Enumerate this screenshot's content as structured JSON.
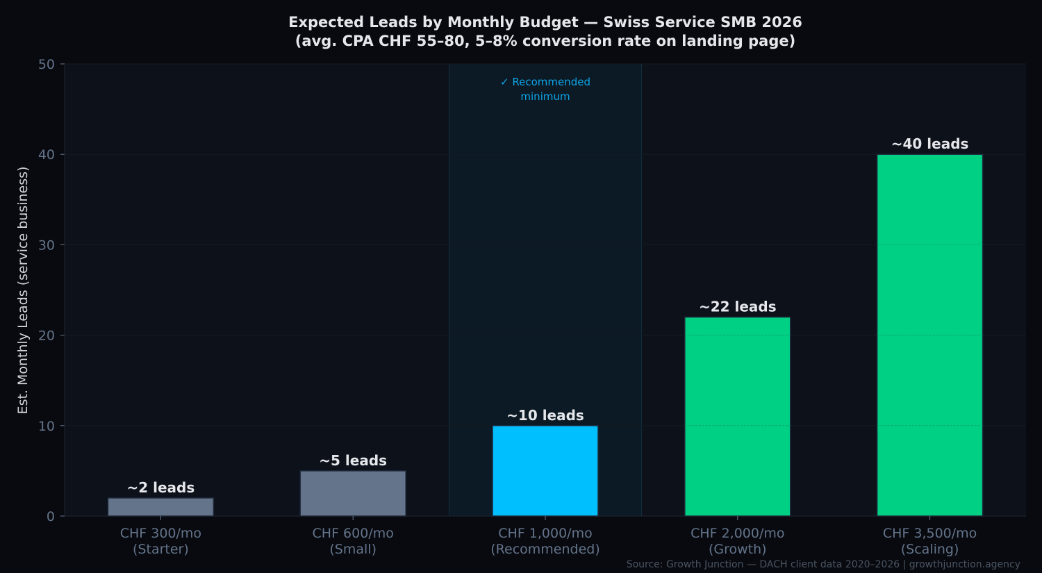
{
  "chart_data": {
    "type": "bar",
    "title": "Expected Leads by Monthly Budget — Swiss Service SMB 2026",
    "subtitle": "(avg. CPA CHF 55–80, 5–8% conversion rate on landing page)",
    "xlabel": "",
    "ylabel": "Est. Monthly Leads (service business)",
    "ylim": [
      0,
      50
    ],
    "yticks": [
      0,
      10,
      20,
      30,
      40,
      50
    ],
    "grid": true,
    "categories": [
      "CHF 300/mo\n(Starter)",
      "CHF 600/mo\n(Small)",
      "CHF 1,000/mo\n(Recommended)",
      "CHF 2,000/mo\n(Growth)",
      "CHF 3,500/mo\n(Scaling)"
    ],
    "values": [
      2,
      5,
      10,
      22,
      40
    ],
    "data_labels": [
      "~2 leads",
      "~5 leads",
      "~10 leads",
      "~22 leads",
      "~40 leads"
    ],
    "colors": [
      "#64748b",
      "#64748b",
      "#00bfff",
      "#00d084",
      "#00d084"
    ],
    "highlight": {
      "category_index": 2,
      "label": "✓ Recommended\nminimum",
      "color": "#0ea5e9"
    },
    "source": "Source: Growth Junction — DACH client data 2020–2026 | growthjunction.agency"
  }
}
